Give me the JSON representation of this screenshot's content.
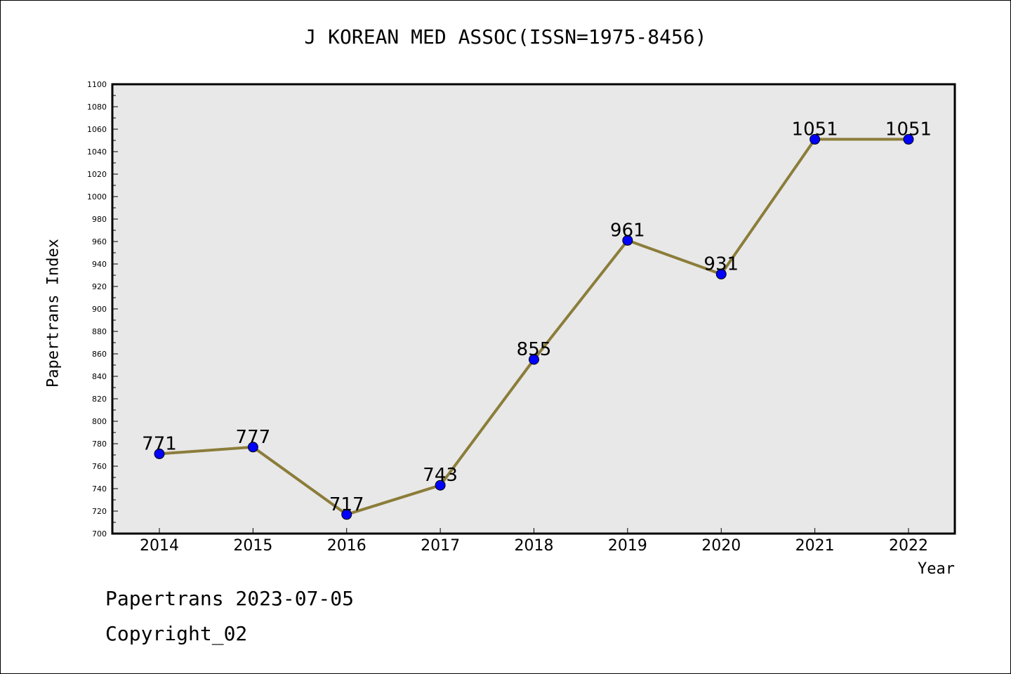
{
  "chart_data": {
    "type": "line",
    "title": "J KOREAN MED ASSOC(ISSN=1975-8456)",
    "xlabel": "Year",
    "ylabel": "Papertrans Index",
    "categories": [
      "2014",
      "2015",
      "2016",
      "2017",
      "2018",
      "2019",
      "2020",
      "2021",
      "2022"
    ],
    "values": [
      771,
      777,
      717,
      743,
      855,
      961,
      931,
      1051,
      1051
    ],
    "ylim": [
      700,
      1100
    ],
    "ytick_step": 20,
    "yminor_step": 10,
    "grid": false,
    "legend": "none",
    "colors": {
      "line": "#8b7d3a",
      "marker": "#0000ff",
      "plot_background": "#e8e8e8",
      "axis": "#000000"
    }
  },
  "footer": {
    "date_line": "Papertrans 2023-07-05",
    "copyright": "Copyright_02"
  }
}
